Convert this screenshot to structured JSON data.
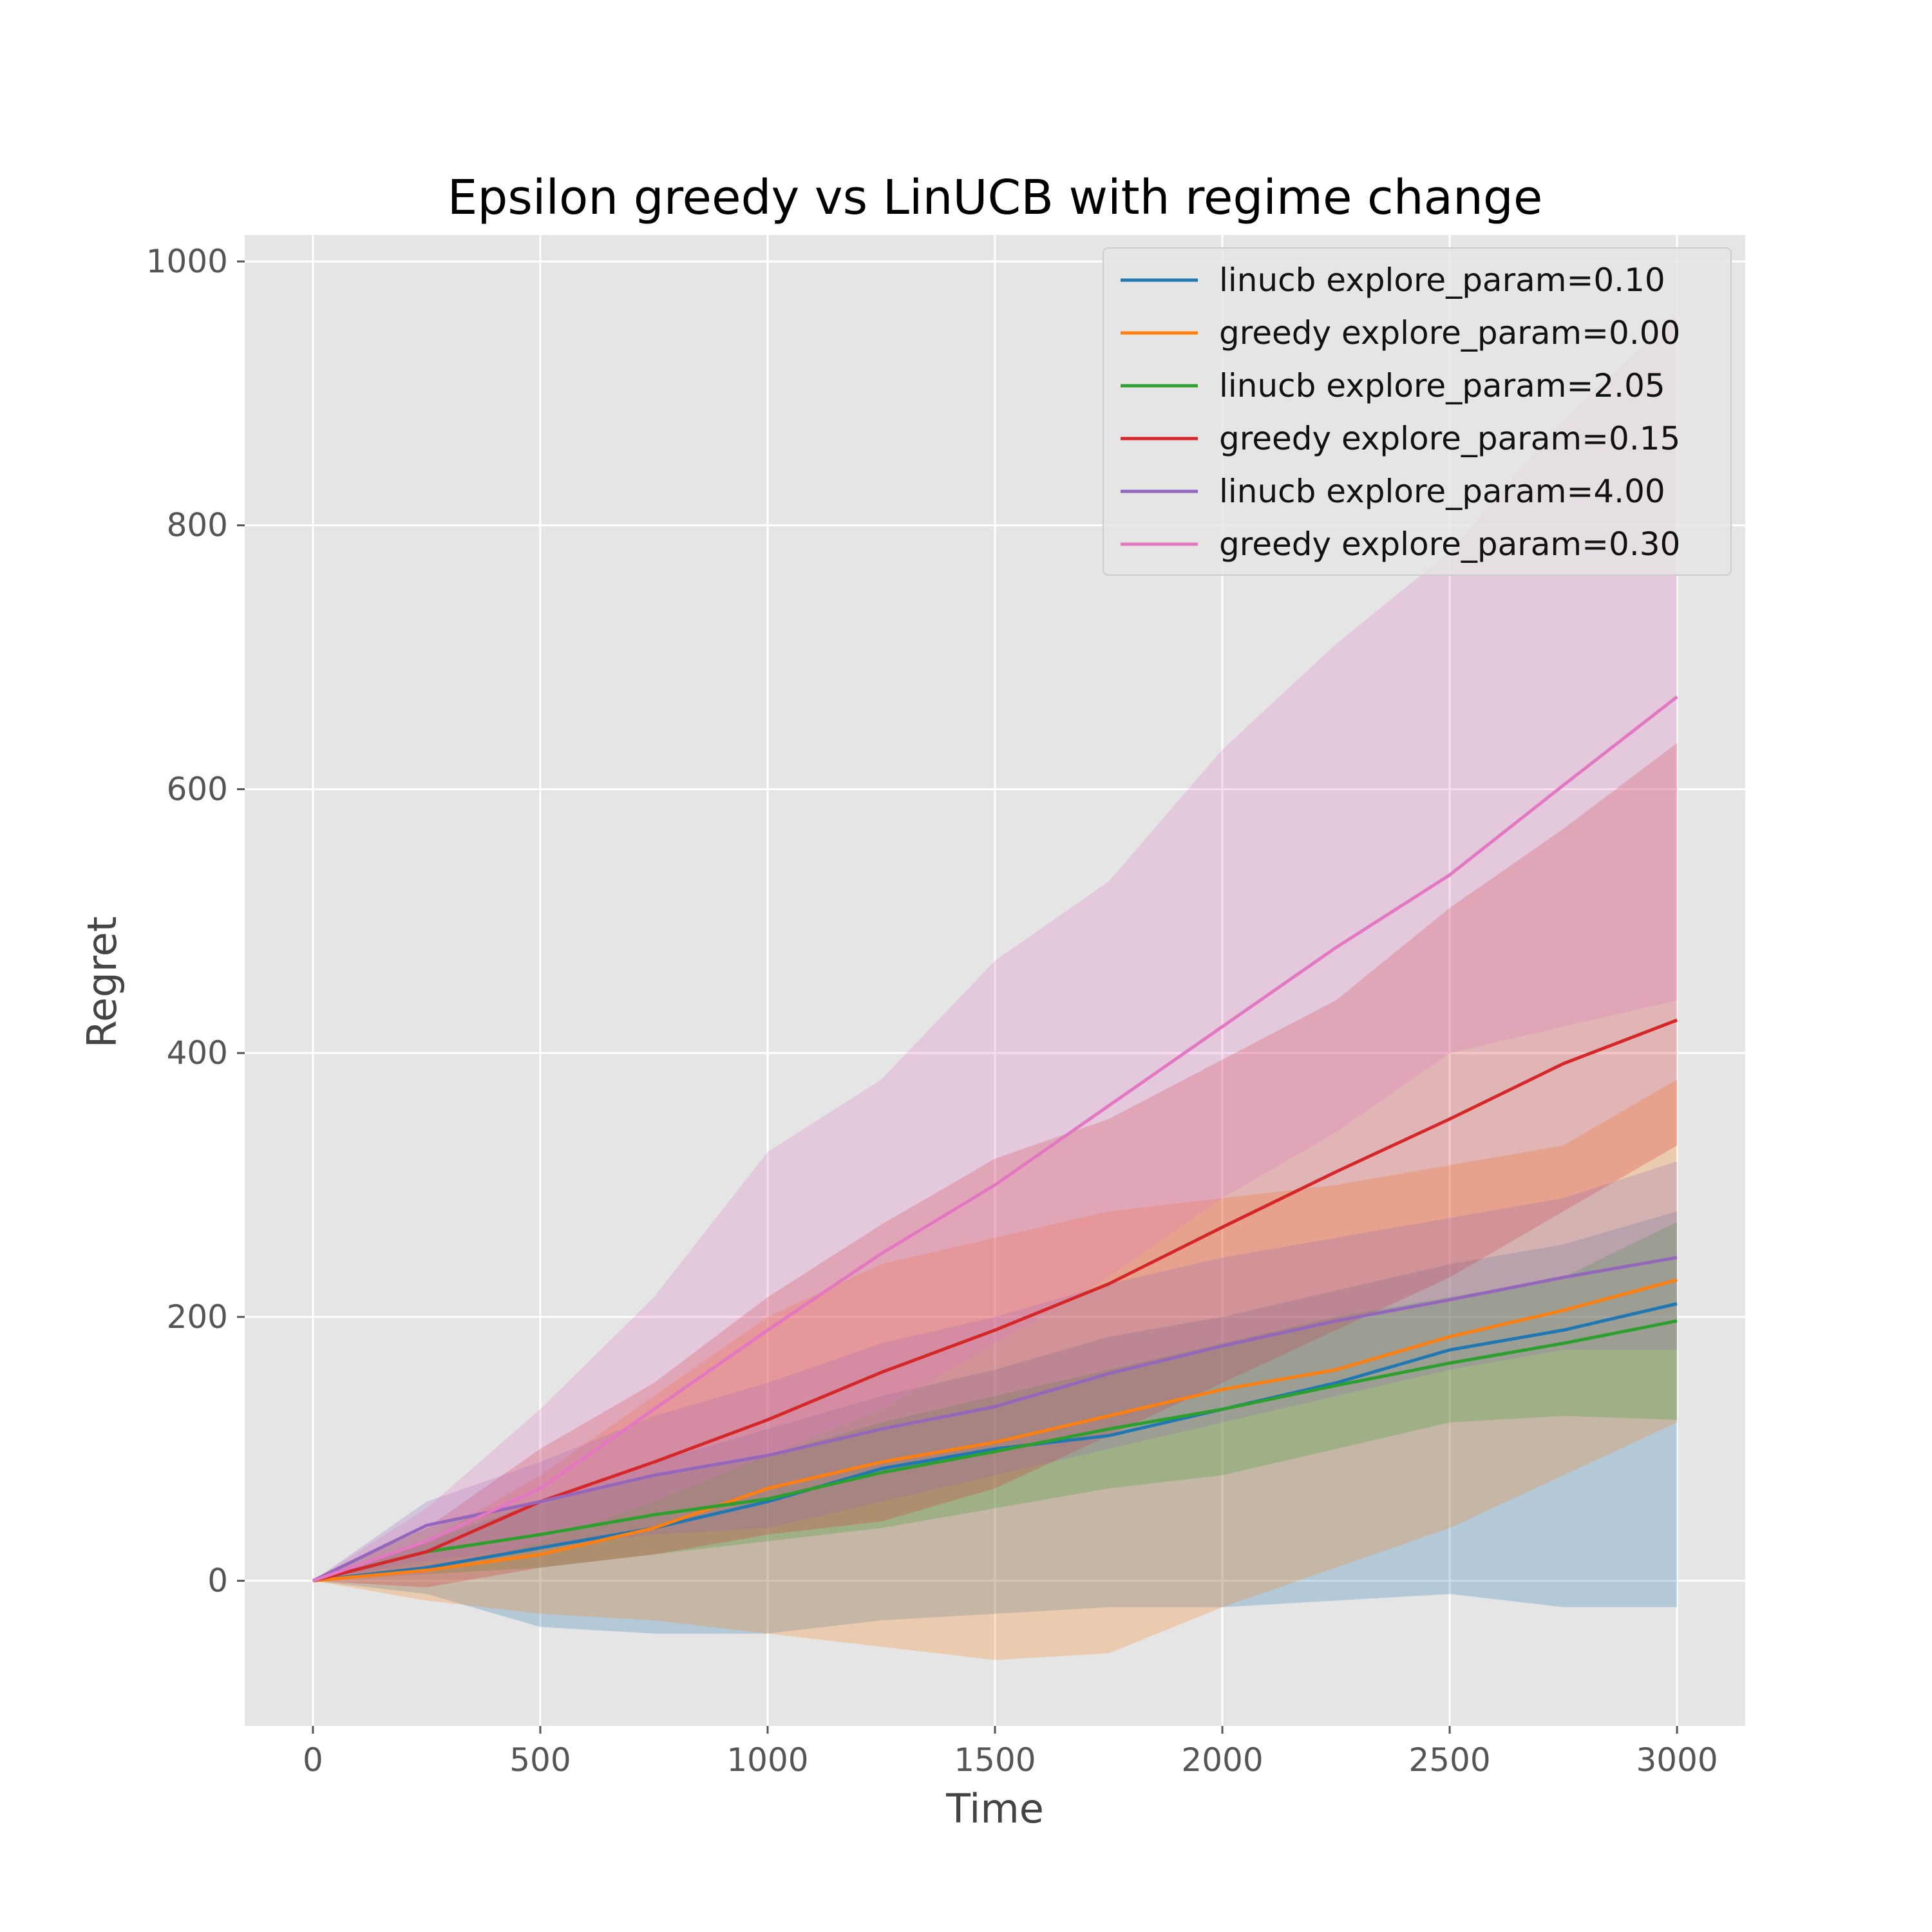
{
  "chart_data": {
    "type": "line",
    "title": "Epsilon greedy vs LinUCB with regime change",
    "xlabel": "Time",
    "ylabel": "Regret",
    "xlim": [
      -150,
      3150
    ],
    "ylim": [
      -110,
      1020
    ],
    "x_ticks": [
      0,
      500,
      1000,
      1500,
      2000,
      2500,
      3000
    ],
    "y_ticks": [
      0,
      200,
      400,
      600,
      800,
      1000
    ],
    "grid": true,
    "style": "ggplot",
    "legend_position": "top-right",
    "band_opacity": 0.25,
    "series": [
      {
        "name": "linucb explore_param=0.10",
        "color": "#1f77b4",
        "x": [
          0,
          250,
          500,
          750,
          1000,
          1250,
          1500,
          1750,
          2000,
          2250,
          2500,
          2750,
          3000
        ],
        "mean": [
          0,
          10,
          25,
          40,
          60,
          85,
          100,
          110,
          130,
          150,
          175,
          190,
          210
        ],
        "lower": [
          0,
          -10,
          -35,
          -40,
          -40,
          -30,
          -25,
          -20,
          -20,
          -15,
          -10,
          -20,
          -20
        ],
        "upper": [
          0,
          30,
          60,
          90,
          115,
          140,
          160,
          185,
          200,
          220,
          240,
          255,
          280
        ]
      },
      {
        "name": "greedy explore_param=0.00",
        "color": "#ff7f0e",
        "x": [
          0,
          250,
          500,
          750,
          1000,
          1250,
          1500,
          1750,
          2000,
          2250,
          2500,
          2750,
          3000
        ],
        "mean": [
          0,
          8,
          20,
          40,
          70,
          90,
          105,
          125,
          145,
          160,
          185,
          205,
          228
        ],
        "lower": [
          0,
          -15,
          -25,
          -30,
          -40,
          -50,
          -60,
          -55,
          -20,
          10,
          40,
          80,
          120
        ],
        "upper": [
          0,
          30,
          80,
          140,
          200,
          240,
          260,
          280,
          290,
          300,
          315,
          330,
          380
        ]
      },
      {
        "name": "linucb explore_param=2.05",
        "color": "#2ca02c",
        "x": [
          0,
          250,
          500,
          750,
          1000,
          1250,
          1500,
          1750,
          2000,
          2250,
          2500,
          2750,
          3000
        ],
        "mean": [
          0,
          22,
          35,
          50,
          62,
          82,
          98,
          115,
          130,
          148,
          165,
          180,
          197
        ],
        "lower": [
          0,
          5,
          10,
          20,
          30,
          40,
          55,
          70,
          80,
          100,
          120,
          125,
          122
        ],
        "upper": [
          0,
          40,
          60,
          80,
          95,
          120,
          140,
          160,
          180,
          200,
          215,
          230,
          272
        ]
      },
      {
        "name": "greedy explore_param=0.15",
        "color": "#d62728",
        "x": [
          0,
          250,
          500,
          750,
          1000,
          1250,
          1500,
          1750,
          2000,
          2250,
          2500,
          2750,
          3000
        ],
        "mean": [
          0,
          22,
          60,
          90,
          122,
          158,
          190,
          225,
          268,
          310,
          350,
          392,
          425
        ],
        "lower": [
          0,
          -5,
          10,
          20,
          35,
          45,
          70,
          110,
          150,
          190,
          230,
          280,
          330
        ],
        "upper": [
          0,
          40,
          100,
          150,
          215,
          270,
          320,
          350,
          395,
          440,
          510,
          570,
          635
        ]
      },
      {
        "name": "linucb explore_param=4.00",
        "color": "#9467bd",
        "x": [
          0,
          250,
          500,
          750,
          1000,
          1250,
          1500,
          1750,
          2000,
          2250,
          2500,
          2750,
          3000
        ],
        "mean": [
          0,
          42,
          60,
          80,
          95,
          115,
          132,
          157,
          178,
          197,
          213,
          230,
          245
        ],
        "lower": [
          0,
          15,
          25,
          35,
          40,
          60,
          80,
          100,
          120,
          140,
          160,
          175,
          175
        ],
        "upper": [
          0,
          60,
          90,
          125,
          150,
          180,
          200,
          225,
          245,
          260,
          275,
          290,
          318
        ]
      },
      {
        "name": "greedy explore_param=0.30",
        "color": "#e377c2",
        "x": [
          0,
          250,
          500,
          750,
          1000,
          1250,
          1500,
          1750,
          2000,
          2250,
          2500,
          2750,
          3000
        ],
        "mean": [
          0,
          30,
          70,
          130,
          190,
          248,
          300,
          360,
          420,
          480,
          535,
          603,
          670
        ],
        "lower": [
          0,
          5,
          30,
          60,
          95,
          130,
          180,
          230,
          290,
          340,
          400,
          420,
          440
        ],
        "upper": [
          0,
          55,
          130,
          215,
          325,
          380,
          470,
          530,
          630,
          710,
          780,
          880,
          960
        ]
      }
    ]
  }
}
